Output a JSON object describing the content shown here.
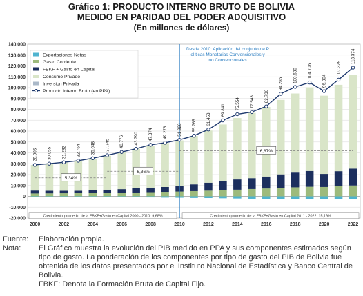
{
  "title": {
    "line1": "Gráfico 1: PRODUCTO INTERNO BRUTO DE BOLIVIA",
    "line2": "MEDIDO EN PARIDAD DEL PODER ADQUISITIVO",
    "line3": "(En millones de dólares)"
  },
  "chart_data": {
    "type": "bar",
    "stacked": true,
    "x": [
      2000,
      2001,
      2002,
      2003,
      2004,
      2005,
      2006,
      2007,
      2008,
      2009,
      2010,
      2011,
      2012,
      2013,
      2014,
      2015,
      2016,
      2017,
      2018,
      2019,
      2020,
      2021,
      2022
    ],
    "x_ticks": [
      2000,
      2002,
      2004,
      2006,
      2008,
      2010,
      2012,
      2014,
      2016,
      2018,
      2020,
      2022
    ],
    "ylim": [
      -20000,
      140000
    ],
    "y_ticks": [
      -20000,
      -10000,
      0,
      10000,
      20000,
      30000,
      40000,
      50000,
      60000,
      70000,
      80000,
      90000,
      100000,
      110000,
      120000,
      130000,
      140000
    ],
    "y_tick_labels": [
      "-20.000",
      "-10.000",
      "0",
      "10.000",
      "20.000",
      "30.000",
      "40.000",
      "50.000",
      "60.000",
      "70.000",
      "80.000",
      "90.000",
      "100.000",
      "110.000",
      "120.000",
      "130.000",
      "140.000"
    ],
    "grid": true,
    "legend_position": "top-left",
    "series": [
      {
        "name": "Exportaciones Netas",
        "color": "#4fb3cf",
        "values": [
          -900,
          -800,
          -600,
          -500,
          -500,
          -600,
          -800,
          -900,
          -1000,
          -1200,
          -1300,
          -1500,
          -1600,
          -1800,
          -2000,
          -2200,
          -2300,
          -2500,
          -2600,
          -2700,
          -2300,
          -2600,
          -2800
        ]
      },
      {
        "name": "Gasto Corriente",
        "color": "#9dba7c",
        "values": [
          2600,
          2700,
          2800,
          2900,
          3000,
          3100,
          3300,
          3500,
          3800,
          4100,
          4400,
          4800,
          5200,
          5600,
          6100,
          6700,
          7200,
          7800,
          8300,
          8800,
          8600,
          9300,
          10000
        ]
      },
      {
        "name": "FBKF + Gasto en Capital",
        "color": "#1c2f5e",
        "values": [
          2700,
          2400,
          2300,
          2200,
          2500,
          3000,
          3300,
          3800,
          4200,
          4500,
          5000,
          6200,
          7300,
          8300,
          9400,
          10000,
          11000,
          12400,
          13500,
          14500,
          12000,
          13800,
          15500
        ]
      },
      {
        "name": "Consumo Privado",
        "color": "#d9e5c8",
        "values": [
          23600,
          24900,
          25900,
          27200,
          28900,
          31200,
          34000,
          36400,
          38400,
          40400,
          42000,
          44500,
          48000,
          52200,
          56500,
          60000,
          64000,
          68500,
          72800,
          77000,
          72000,
          79500,
          86000
        ]
      },
      {
        "name": "Inversion Privada",
        "color": "#aab8c8",
        "values": [
          0,
          0,
          0,
          0,
          0,
          0,
          0,
          0,
          0,
          0,
          0,
          0,
          0,
          0,
          0,
          0,
          0,
          0,
          0,
          0,
          0,
          0,
          0
        ]
      }
    ],
    "line": {
      "name": "Producto Interno Bruto (en PPA)",
      "color": "#1f3a6e",
      "values": [
        28906,
        30055,
        31282,
        32764,
        35048,
        37745,
        40776,
        43790,
        47374,
        49278,
        51928,
        55765,
        61453,
        69841,
        75554,
        77543,
        82736,
        94285,
        100630,
        104706,
        96804,
        107329,
        118374
      ],
      "labels": [
        "28.906",
        "30.055",
        "31.282",
        "32.764",
        "35.048",
        "37.745",
        "40.776",
        "43.790",
        "47.374",
        "49.278",
        "51.928",
        "55.765",
        "61.453",
        "69.841",
        "75.554",
        "77.543",
        "82.736",
        "94.285",
        "100.630",
        "104.706",
        "96.804",
        "107.329",
        "118.374"
      ]
    },
    "divider_year": 2010,
    "annotation": "Desde 2010: Aplicación del conjunto de Políticas Monetarias Convencionales y no Convencionales",
    "averages": [
      {
        "label": "5,34%",
        "from": 2000,
        "to": 2005,
        "level": 17000
      },
      {
        "label": "6,36%",
        "from": 2005,
        "to": 2010,
        "level": 23000
      },
      {
        "label": "6,87%",
        "from": 2010,
        "to": 2022,
        "level": 42000
      }
    ],
    "period_boxes": [
      "Crecimiento promedio de la FBKF+Gasto en Capital 2000 - 2010: 9,68%",
      "Crecimiento promedio de la FBKF+Gasto en Capital 2011 - 2022: 15,19%"
    ]
  },
  "notes": {
    "source_label": "Fuente:",
    "source_text": "Elaboración propia.",
    "note_label": "Nota:",
    "note_text": "El Gráfico muestra la evolución del PIB medido en PPA y sus componentes estimados según tipo de gasto. La ponderación de los componentes por tipo de gasto del PIB de Bolivia fue obtenida de los datos presentados por el Instituto Nacional de Estadística y Banco Central de Bolivia.",
    "fbkf_text": "FBKF: Denota la Formación Bruta de Capital Fijo."
  }
}
